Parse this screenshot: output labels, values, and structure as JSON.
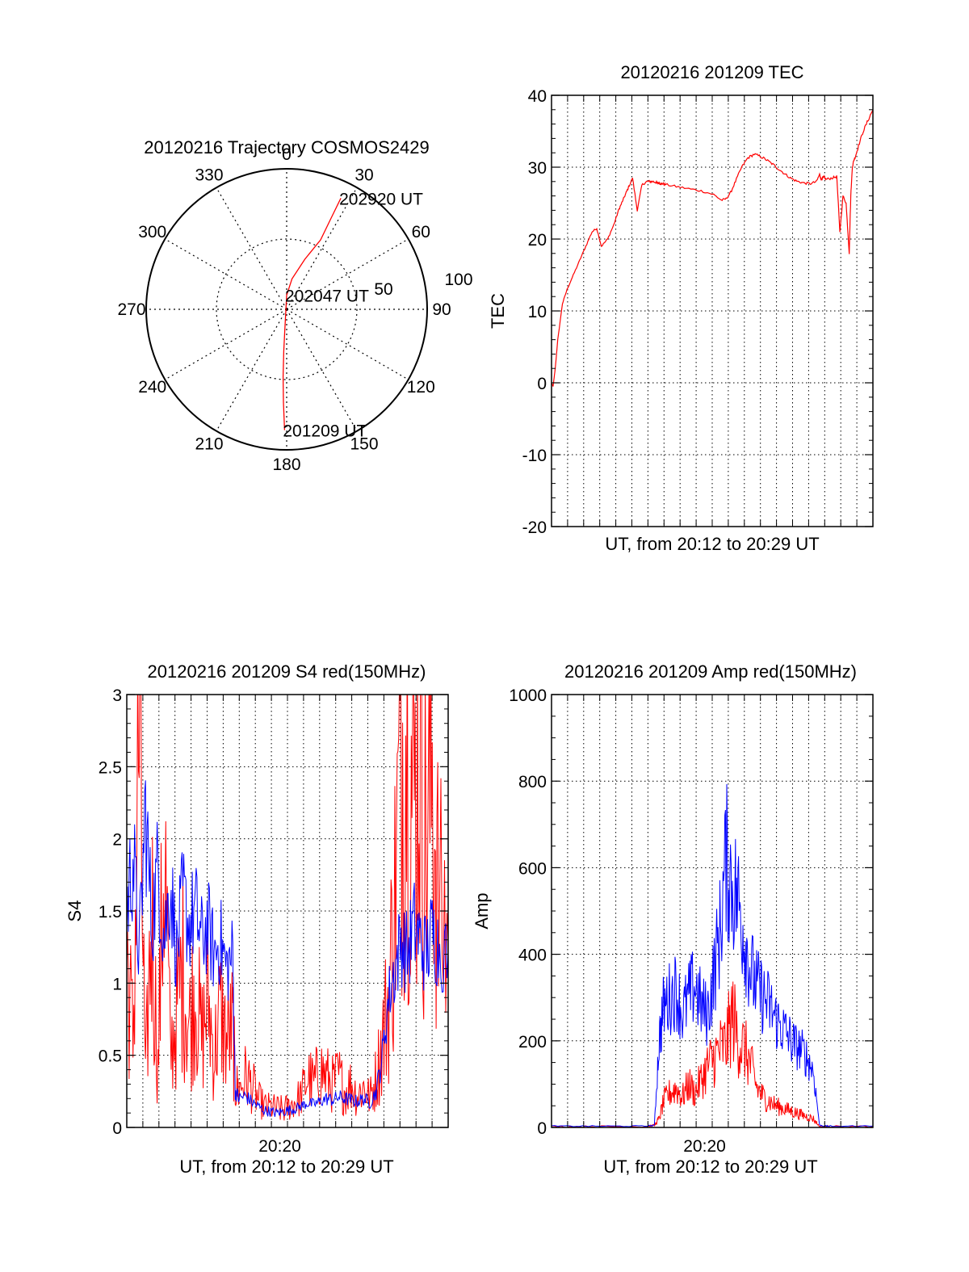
{
  "chart_data": [
    {
      "id": "trajectory",
      "type": "polar",
      "title": "20120216 Trajectory COSMOS2429",
      "azimuth_labels": [
        "0",
        "30",
        "60",
        "90",
        "120",
        "150",
        "180",
        "210",
        "240",
        "270",
        "300",
        "330"
      ],
      "radial_labels": [
        "50",
        "100"
      ],
      "radial_range": [
        0,
        100
      ],
      "grid": true,
      "series": [
        {
          "color": "#ff0000",
          "points": [
            [
              26,
              88
            ],
            [
              26,
              72
            ],
            [
              26,
              55
            ],
            [
              20,
              38
            ],
            [
              10,
              22
            ],
            [
              0,
              10
            ],
            [
              185,
              16
            ],
            [
              184,
              30
            ],
            [
              183,
              48
            ],
            [
              182,
              66
            ],
            [
              181,
              86
            ]
          ]
        }
      ],
      "annotations": [
        {
          "text": "202920 UT",
          "az": 26,
          "r": 88
        },
        {
          "text": "202047 UT",
          "az": 0,
          "r": 10
        },
        {
          "text": "201209 UT",
          "az": 181,
          "r": 86
        }
      ]
    },
    {
      "id": "tec",
      "type": "line",
      "title": "20120216 201209 TEC",
      "xlabel": "UT, from 20:12 to 20:29 UT",
      "ylabel": "TEC",
      "xlim": [
        0,
        1031
      ],
      "ylim": [
        -20,
        40
      ],
      "yticks": [
        -20,
        -10,
        0,
        10,
        20,
        30,
        40
      ],
      "grid": true,
      "series": [
        {
          "color": "#ff0000",
          "x": [
            0,
            5,
            12,
            20,
            35,
            50,
            70,
            90,
            110,
            130,
            145,
            160,
            180,
            200,
            215,
            225,
            235,
            245,
            260,
            275,
            290,
            305,
            315,
            325,
            335,
            340,
            345,
            350,
            355,
            365,
            400,
            440,
            480,
            520,
            545,
            560,
            575,
            590,
            610,
            630,
            650,
            670,
            690,
            710,
            730,
            750,
            770,
            790,
            810,
            830,
            850,
            860,
            865,
            870,
            875,
            880,
            900,
            915,
            925,
            935,
            945,
            955,
            960,
            965,
            970,
            975,
            985,
            1000,
            1015,
            1031
          ],
          "y": [
            0,
            -0.5,
            2,
            6,
            11,
            13,
            15,
            17,
            19,
            21,
            21.5,
            19,
            20,
            22,
            24,
            25,
            26,
            27,
            28.5,
            24,
            27.5,
            28,
            28,
            28,
            27.9,
            27.8,
            27.8,
            27.7,
            27.7,
            27.6,
            27.3,
            27,
            26.7,
            26.2,
            25.4,
            25.6,
            26.5,
            28,
            30,
            31.3,
            31.8,
            31.5,
            31,
            30.4,
            29.7,
            29,
            28.4,
            28,
            27.8,
            27.7,
            28,
            29,
            28.3,
            28.5,
            28.6,
            28.3,
            28.5,
            28.7,
            21,
            26,
            25,
            18,
            26,
            30,
            31,
            31.5,
            33,
            35,
            36.5,
            38
          ]
        }
      ]
    },
    {
      "id": "s4",
      "type": "line",
      "title": "20120216 201209 S4 red(150MHz)",
      "xlabel": "UT, from 20:12 to 20:29 UT",
      "ylabel": "S4",
      "xlim": [
        0,
        1031
      ],
      "ylim": [
        0,
        3
      ],
      "yticks": [
        0,
        0.5,
        1,
        1.5,
        2,
        2.5,
        3
      ],
      "ytick_labels": [
        "0",
        "0.5",
        "1",
        "1.5",
        "2",
        "2.5",
        "3"
      ],
      "xticks": [
        {
          "value": 491,
          "label": "20:20"
        }
      ],
      "grid": true,
      "series": [
        {
          "color": "#ff0000",
          "x": [
            0,
            20,
            40,
            60,
            80,
            100,
            120,
            140,
            160,
            180,
            200,
            220,
            240,
            260,
            280,
            300,
            320,
            340,
            348,
            360,
            380,
            400,
            420,
            440,
            460,
            480,
            500,
            520,
            540,
            560,
            580,
            600,
            620,
            640,
            660,
            680,
            700,
            720,
            740,
            760,
            780,
            800,
            820,
            840,
            860,
            880,
            900,
            920,
            940,
            960,
            980,
            1000,
            1031
          ],
          "y": [
            1.2,
            0.6,
            2.8,
            0.3,
            1.5,
            0.4,
            2.0,
            0.5,
            0.8,
            1.1,
            0.7,
            1.0,
            0.6,
            0.9,
            0.5,
            0.8,
            0.6,
            0.7,
            0.3,
            0.25,
            0.35,
            0.3,
            0.2,
            0.15,
            0.14,
            0.13,
            0.12,
            0.14,
            0.18,
            0.22,
            0.35,
            0.3,
            0.4,
            0.35,
            0.3,
            0.35,
            0.25,
            0.3,
            0.22,
            0.28,
            0.2,
            0.35,
            0.6,
            0.9,
            1.6,
            2.6,
            2.9,
            2.2,
            2.8,
            1.9,
            2.5,
            1.5,
            1.3
          ]
        },
        {
          "color": "#0000ff",
          "x": [
            0,
            20,
            40,
            60,
            80,
            100,
            120,
            140,
            160,
            180,
            200,
            220,
            240,
            260,
            280,
            300,
            320,
            340,
            348,
            360,
            380,
            400,
            420,
            440,
            460,
            480,
            500,
            520,
            540,
            560,
            580,
            600,
            620,
            640,
            660,
            680,
            700,
            720,
            740,
            760,
            780,
            800,
            820,
            840,
            860,
            880,
            900,
            920,
            940,
            960,
            980,
            1000,
            1031
          ],
          "y": [
            1.5,
            1.9,
            1.2,
            2.2,
            1.4,
            1.8,
            1.3,
            1.7,
            1.2,
            1.6,
            1.4,
            1.5,
            1.3,
            1.4,
            1.2,
            1.3,
            1.1,
            1.2,
            0.25,
            0.2,
            0.22,
            0.18,
            0.15,
            0.12,
            0.11,
            0.1,
            0.11,
            0.12,
            0.13,
            0.15,
            0.17,
            0.16,
            0.18,
            0.2,
            0.19,
            0.21,
            0.2,
            0.19,
            0.18,
            0.2,
            0.17,
            0.25,
            0.5,
            0.9,
            1.1,
            1.3,
            1.2,
            1.4,
            1.3,
            1.2,
            1.35,
            1.25,
            1.2
          ]
        }
      ]
    },
    {
      "id": "amp",
      "type": "line",
      "title": "20120216 201209 Amp red(150MHz)",
      "xlabel": "UT, from 20:12 to 20:29 UT",
      "ylabel": "Amp",
      "xlim": [
        0,
        1031
      ],
      "ylim": [
        0,
        1000
      ],
      "yticks": [
        0,
        200,
        400,
        600,
        800,
        1000
      ],
      "xticks": [
        {
          "value": 491,
          "label": "20:20"
        }
      ],
      "grid": true,
      "series": [
        {
          "color": "#ff0000",
          "x": [
            0,
            100,
            200,
            300,
            330,
            345,
            360,
            380,
            400,
            420,
            440,
            460,
            480,
            500,
            520,
            540,
            560,
            580,
            600,
            620,
            640,
            660,
            680,
            700,
            720,
            740,
            760,
            780,
            800,
            820,
            840,
            860,
            880,
            900,
            1031
          ],
          "y": [
            2,
            2,
            2,
            2,
            5,
            20,
            60,
            80,
            90,
            70,
            100,
            80,
            110,
            140,
            160,
            180,
            190,
            260,
            200,
            180,
            140,
            90,
            70,
            60,
            50,
            45,
            40,
            35,
            30,
            25,
            20,
            2,
            2,
            2,
            2
          ]
        },
        {
          "color": "#0000ff",
          "x": [
            0,
            100,
            200,
            300,
            330,
            345,
            360,
            380,
            400,
            420,
            440,
            460,
            480,
            500,
            520,
            540,
            560,
            580,
            600,
            620,
            640,
            660,
            680,
            700,
            720,
            740,
            760,
            780,
            800,
            820,
            840,
            860,
            880,
            900,
            1031
          ],
          "y": [
            3,
            3,
            3,
            3,
            5,
            200,
            280,
            300,
            320,
            260,
            300,
            330,
            280,
            260,
            350,
            450,
            620,
            560,
            520,
            440,
            360,
            320,
            300,
            280,
            250,
            230,
            210,
            190,
            180,
            160,
            130,
            5,
            3,
            3,
            3
          ]
        }
      ]
    }
  ]
}
